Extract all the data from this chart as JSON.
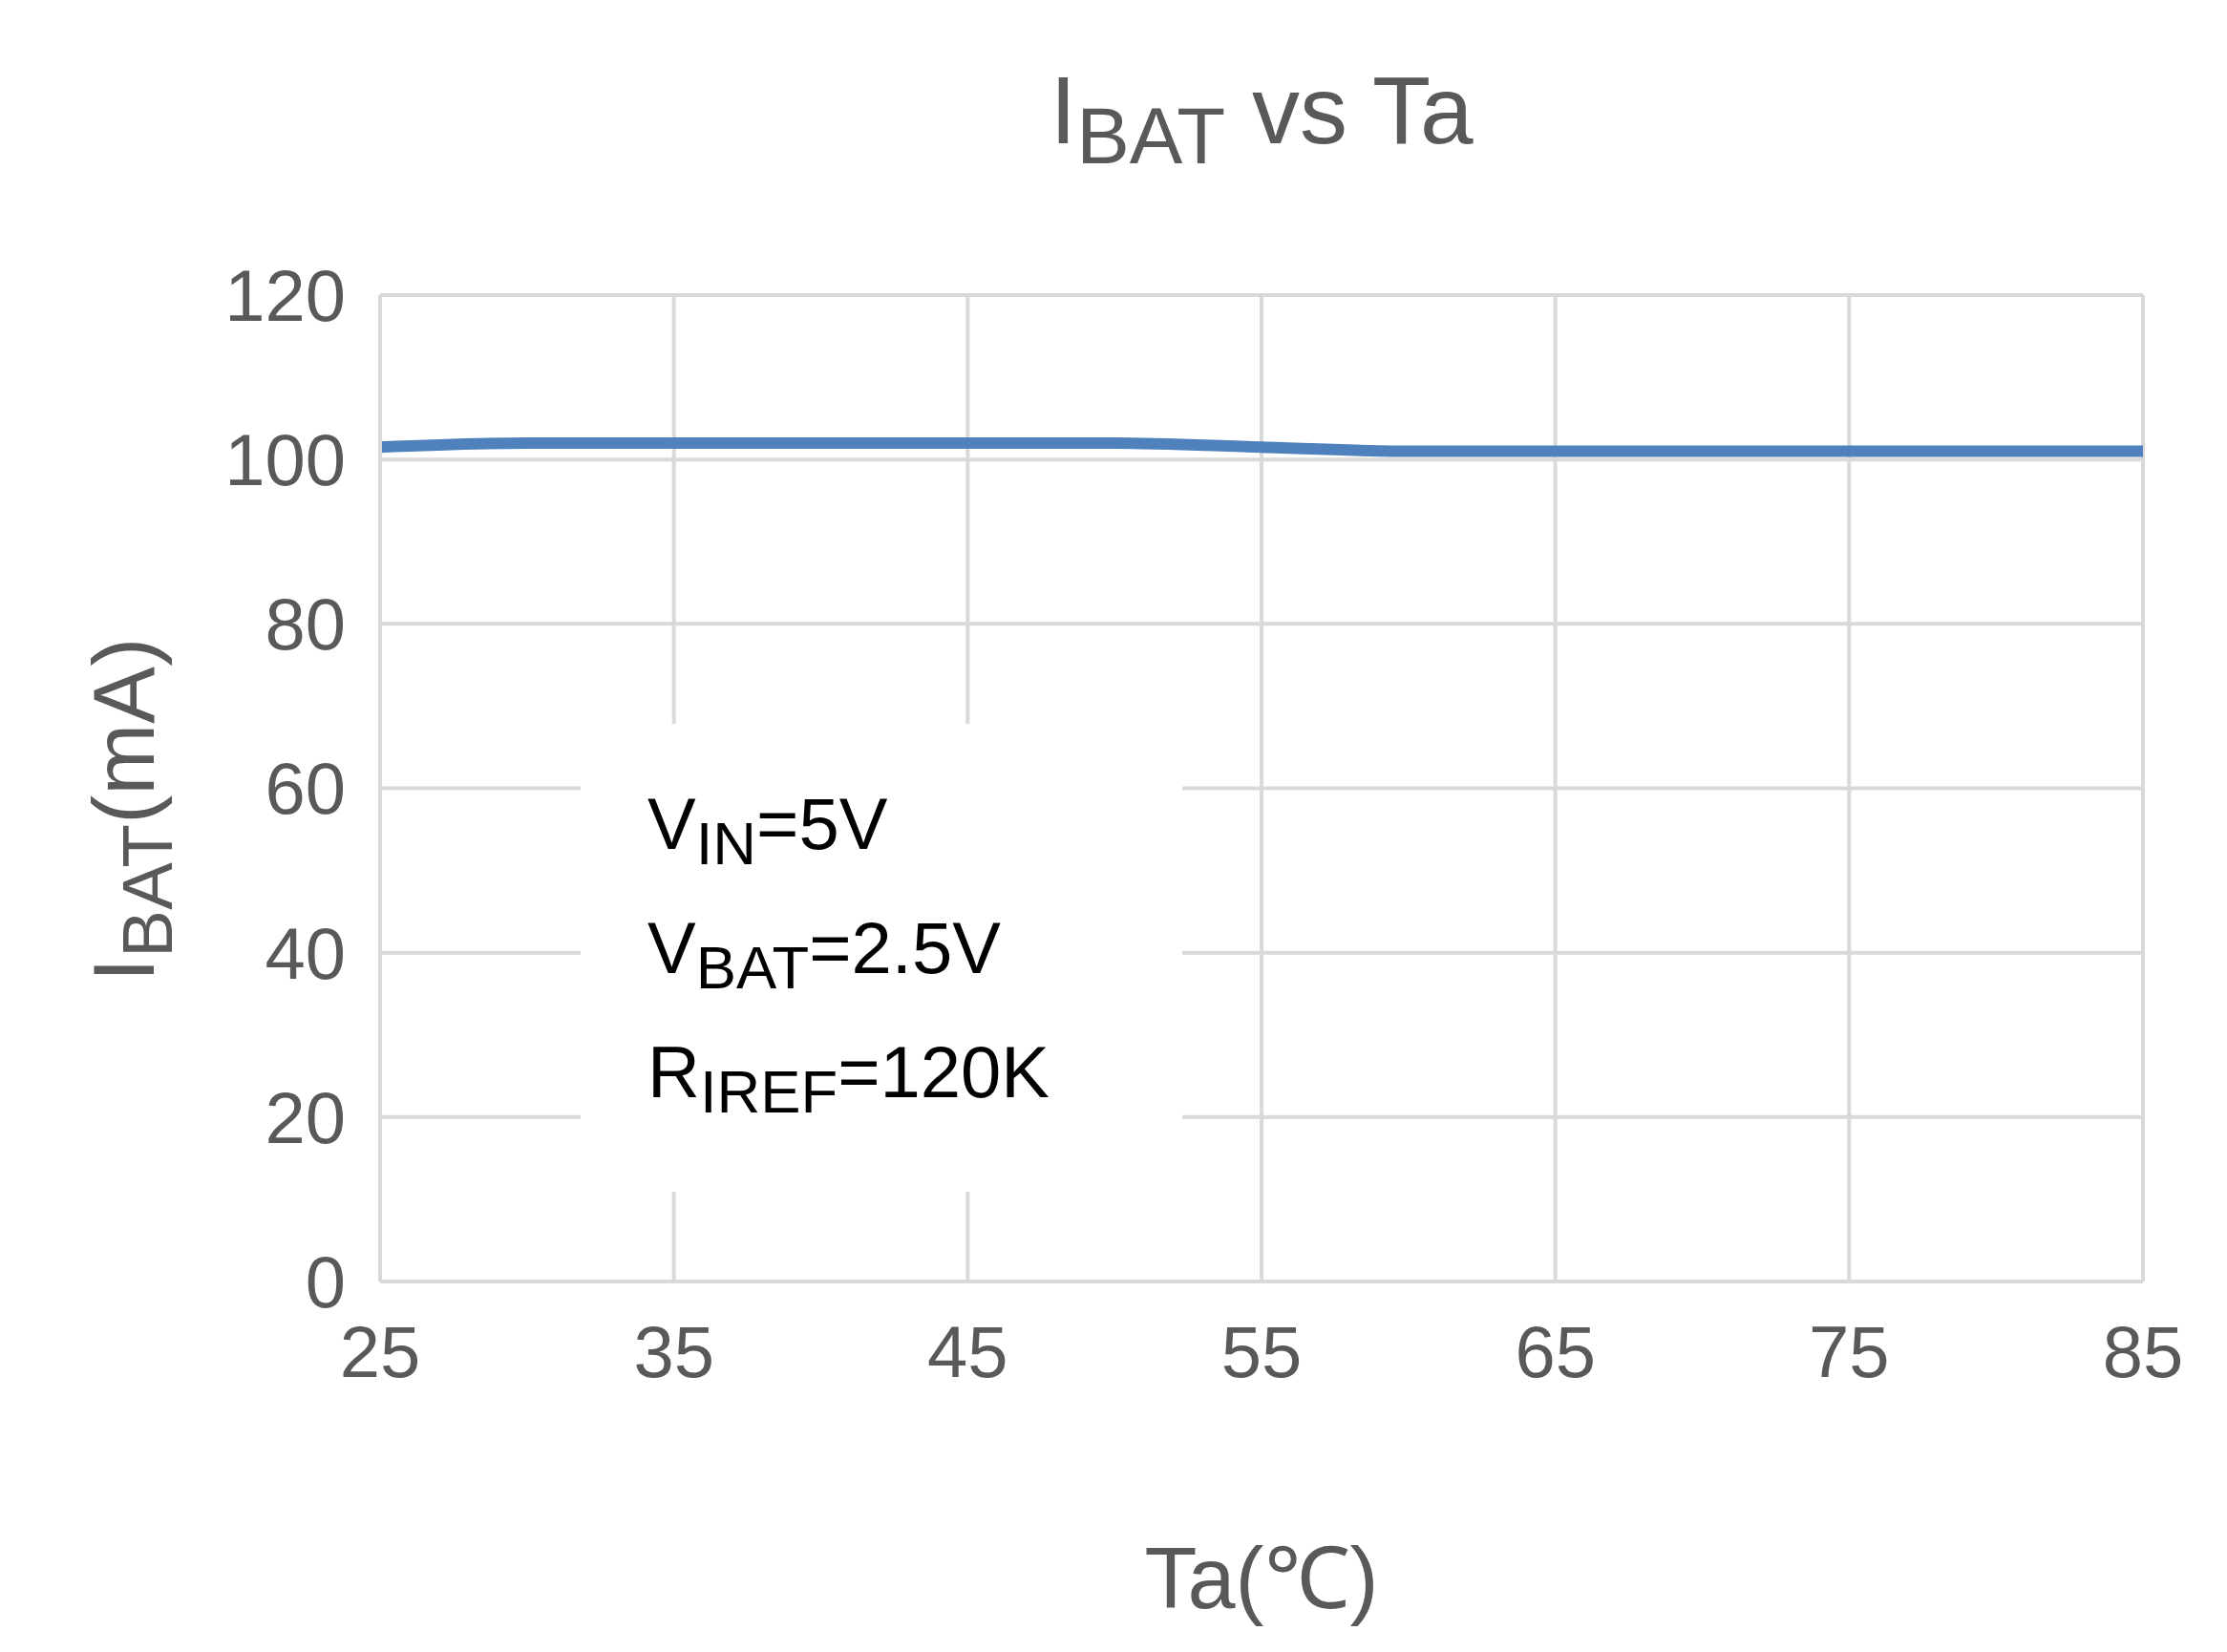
{
  "chart_data": {
    "type": "line",
    "title": "I$_{BAT}$ vs Ta",
    "xlabel": "Ta(℃)",
    "ylabel": "I$_{BAT}$(mA)",
    "annotations": [
      "V$_{IN}$=5V",
      "V$_{BAT}$=2.5V",
      "R$_{IREF}$=120K"
    ],
    "x": [
      25,
      30,
      35,
      40,
      45,
      50,
      55,
      60,
      65,
      70,
      75,
      80,
      85
    ],
    "series": [
      {
        "color": "#4f81bd",
        "values": [
          101.5,
          102,
          102,
          102,
          102,
          102,
          101.5,
          101,
          101,
          101,
          101,
          101,
          101
        ]
      }
    ],
    "xlim": [
      25,
      85
    ],
    "xticks": [
      25,
      35,
      45,
      55,
      65,
      75,
      85
    ],
    "ylim": [
      0,
      120
    ],
    "yticks": [
      0,
      20,
      40,
      60,
      80,
      100,
      120
    ],
    "grid": true,
    "marker": "none",
    "line_style": "solid"
  }
}
